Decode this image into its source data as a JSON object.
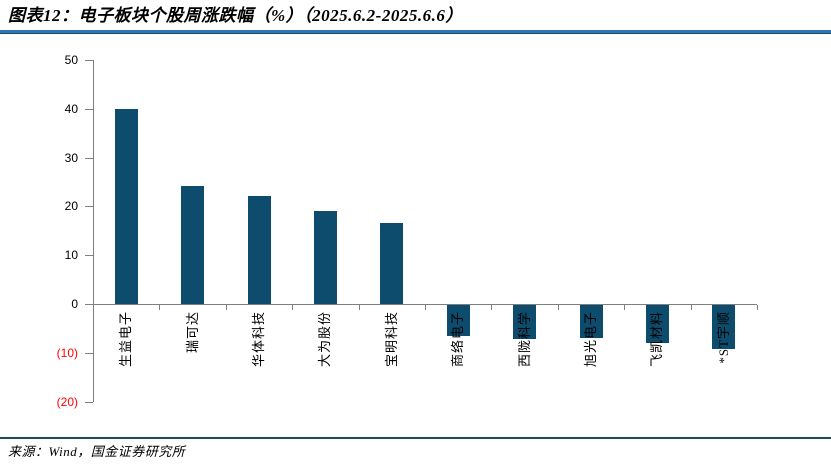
{
  "header": {
    "title": "图表12：电子板块个股周涨跌幅（%）（2025.6.2-2025.6.6）"
  },
  "footer": {
    "source": "来源：Wind，国金证券研究所"
  },
  "colors": {
    "bar": "#0D4C6D",
    "axis": "#7F7F7F",
    "negative_tick_label": "#FF0000",
    "title_rule_blue": "#2E75B6",
    "title_rule_dark": "#1B4A68"
  },
  "chart_data": {
    "type": "bar",
    "title": "电子板块个股周涨跌幅（%）（2025.6.2-2025.6.6）",
    "categories": [
      "生益电子",
      "瑞可达",
      "华体科技",
      "大为股份",
      "宝明科技",
      "商络电子",
      "西陇科学",
      "旭光电子",
      "飞凯材料",
      "*ST宇顺"
    ],
    "values": [
      39.9,
      24.2,
      22.1,
      19.0,
      16.5,
      -6.4,
      -7.0,
      -6.7,
      -7.7,
      -9.1
    ],
    "xlabel": "",
    "ylabel": "",
    "ylim": [
      -20,
      50
    ],
    "ytick_step": 10,
    "ytick_labels": [
      "50",
      "40",
      "30",
      "20",
      "10",
      "0",
      "(10)",
      "(20)"
    ],
    "grid": false,
    "legend_position": "none",
    "bar_label_rotation_deg": -90
  }
}
